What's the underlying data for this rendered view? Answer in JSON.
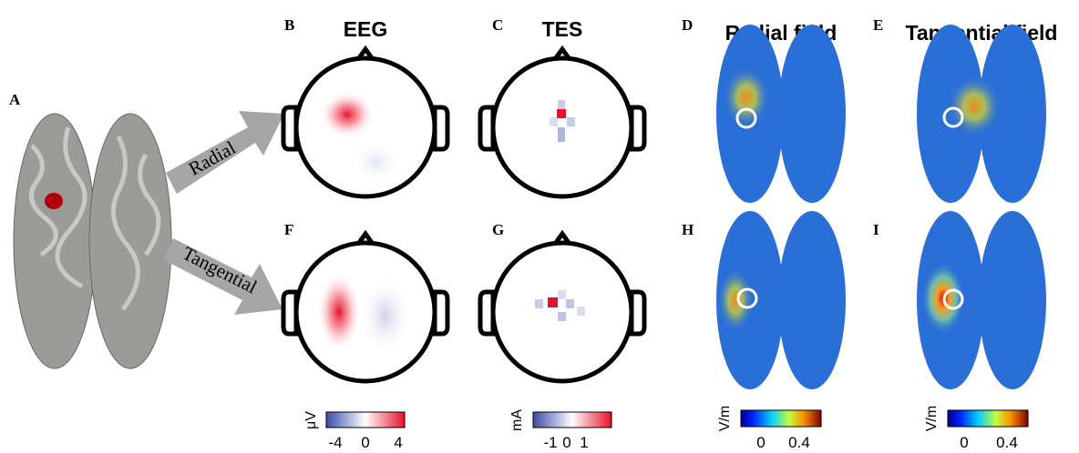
{
  "panel_labels": [
    "A",
    "B",
    "C",
    "D",
    "E",
    "F",
    "G",
    "H",
    "I"
  ],
  "column_titles": [
    "EEG",
    "TES",
    "Radial field",
    "Tangential field"
  ],
  "arrows": [
    "Radial",
    "Tangential"
  ],
  "colorbars": [
    {
      "unit": "μV",
      "ticks": [
        -4,
        0,
        4
      ]
    },
    {
      "unit": "mA",
      "ticks": [
        -1,
        0,
        1
      ]
    },
    {
      "unit": "V/m",
      "ticks": [
        0,
        0.4
      ]
    },
    {
      "unit": "V/m",
      "ticks": [
        0,
        0.4
      ]
    }
  ]
}
